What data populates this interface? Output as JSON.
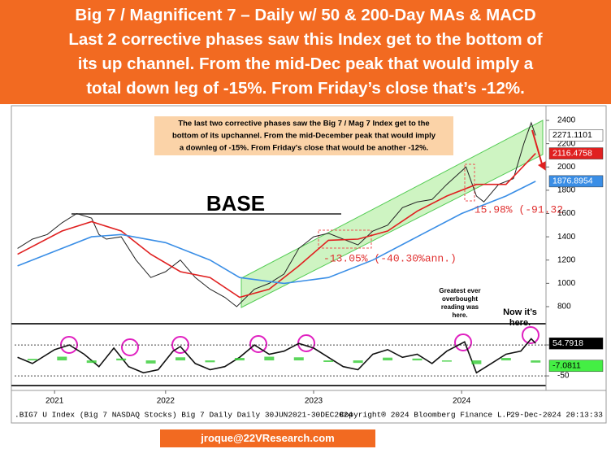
{
  "header": {
    "lines": [
      "Big 7 / Magnificent 7 – Daily w/ 50 & 200-Day MAs & MACD",
      "Last 2 corrective phases saw this Index get to the bottom of",
      "its up channel. From the mid-Dec peak that would imply a",
      "total down leg of -15%. From Friday’s close that’s -12%."
    ]
  },
  "note": [
    "The last two corrective phases saw the Big 7 / Mag 7 Index get to the",
    "bottom of its upchannel. From the mid-December peak that would imply",
    "a downleg of -15%. From Friday's close that would be another -12%."
  ],
  "annotations": {
    "base": "BASE",
    "dd1": "-13.05% (-40.30%ann.)",
    "dd2": "-15.98% (-91.32",
    "greatest": [
      "Greatest ever",
      "overbought",
      "reading was",
      "here."
    ],
    "now": [
      "Now it’s",
      "here."
    ]
  },
  "footer": {
    "left": ".BIG7 U Index (Big 7 NASDAQ Stocks) Big 7 Daily  Daily 30JUN2021-30DEC2024",
    "middle": "Copyright® 2024 Bloomberg Finance L.P.",
    "right": "29-Dec-2024 20:13:33",
    "email": "jroque@22VResearch.com"
  },
  "chart_data": [
    {
      "type": "line",
      "xlim": [
        2021.48,
        2025.07
      ],
      "ylim": [
        674,
        2491
      ],
      "yticks": [
        800,
        1000,
        1200,
        1400,
        1600,
        1800,
        2000,
        2200,
        2400
      ],
      "xticks": [
        {
          "value": 2021.75,
          "label": "2021"
        },
        {
          "value": 2022.5,
          "label": "2022"
        },
        {
          "value": 2023.5,
          "label": "2023"
        },
        {
          "value": 2024.5,
          "label": "2024"
        }
      ],
      "series": [
        {
          "color": "#222222",
          "x": [
            2021.5,
            2021.6,
            2021.7,
            2021.8,
            2021.9,
            2022.0,
            2022.05,
            2022.1,
            2022.2,
            2022.3,
            2022.4,
            2022.5,
            2022.6,
            2022.7,
            2022.8,
            2022.9,
            2022.98,
            2023.1,
            2023.2,
            2023.3,
            2023.4,
            2023.5,
            2023.6,
            2023.7,
            2023.8,
            2023.9,
            2024.0,
            2024.1,
            2024.2,
            2024.3,
            2024.4,
            2024.53,
            2024.6,
            2024.65,
            2024.75,
            2024.85,
            2024.92,
            2024.97,
            2025.0
          ],
          "values": [
            1300,
            1380,
            1420,
            1520,
            1600,
            1560,
            1420,
            1380,
            1400,
            1200,
            1050,
            1100,
            1200,
            1050,
            950,
            880,
            800,
            950,
            1000,
            1080,
            1300,
            1400,
            1430,
            1380,
            1330,
            1450,
            1500,
            1650,
            1700,
            1720,
            1850,
            2000,
            1750,
            1700,
            1850,
            1900,
            2200,
            2380,
            2271.1101
          ]
        },
        {
          "color": "#e02020",
          "x": [
            2021.5,
            2021.8,
            2022.0,
            2022.2,
            2022.4,
            2022.6,
            2022.8,
            2023.0,
            2023.2,
            2023.4,
            2023.6,
            2023.8,
            2024.0,
            2024.2,
            2024.4,
            2024.6,
            2024.8,
            2025.0
          ],
          "values": [
            1250,
            1450,
            1530,
            1450,
            1250,
            1100,
            1050,
            880,
            950,
            1150,
            1370,
            1380,
            1450,
            1620,
            1750,
            1850,
            1850,
            2116.4758
          ]
        },
        {
          "color": "#3a8ee6",
          "x": [
            2021.5,
            2021.8,
            2022.0,
            2022.2,
            2022.5,
            2022.8,
            2023.0,
            2023.3,
            2023.6,
            2023.9,
            2024.2,
            2024.5,
            2024.8,
            2025.0
          ],
          "values": [
            1150,
            1300,
            1400,
            1420,
            1350,
            1200,
            1050,
            1000,
            1050,
            1200,
            1400,
            1600,
            1750,
            1876.8954
          ]
        }
      ]
    },
    {
      "type": "line",
      "xlim": [
        2021.48,
        2025.07
      ],
      "ylim": [
        -76,
        108
      ],
      "yticks": [
        50,
        -50
      ],
      "series": [
        {
          "color": "#111111",
          "x": [
            2021.5,
            2021.6,
            2021.75,
            2021.85,
            2021.95,
            2022.05,
            2022.15,
            2022.25,
            2022.35,
            2022.45,
            2022.55,
            2022.6,
            2022.7,
            2022.8,
            2022.9,
            2023.0,
            2023.1,
            2023.2,
            2023.3,
            2023.4,
            2023.5,
            2023.6,
            2023.7,
            2023.8,
            2023.9,
            2024.0,
            2024.1,
            2024.2,
            2024.3,
            2024.4,
            2024.52,
            2024.6,
            2024.7,
            2024.8,
            2024.9,
            2024.97,
            2025.0
          ],
          "values": [
            10,
            -10,
            35,
            50,
            20,
            -20,
            40,
            -20,
            -40,
            -30,
            30,
            45,
            -10,
            -30,
            -20,
            10,
            50,
            20,
            30,
            55,
            40,
            10,
            -20,
            -30,
            20,
            35,
            10,
            20,
            -10,
            30,
            60,
            -40,
            -10,
            20,
            30,
            70,
            54.7918
          ]
        }
      ]
    },
    {
      "type": "bar",
      "xlim": [
        2021.48,
        2025.07
      ],
      "ylim": [
        -76,
        108
      ],
      "color": "#33cc33",
      "x": [
        2021.6,
        2021.8,
        2022.0,
        2022.2,
        2022.4,
        2022.6,
        2022.8,
        2023.0,
        2023.2,
        2023.4,
        2023.6,
        2023.8,
        2024.0,
        2024.2,
        2024.4,
        2024.6,
        2024.8,
        2025.0
      ],
      "values": [
        5,
        12,
        -8,
        6,
        -10,
        10,
        -6,
        8,
        12,
        10,
        -5,
        -8,
        9,
        6,
        -4,
        -12,
        8,
        -7.0811
      ]
    }
  ]
}
